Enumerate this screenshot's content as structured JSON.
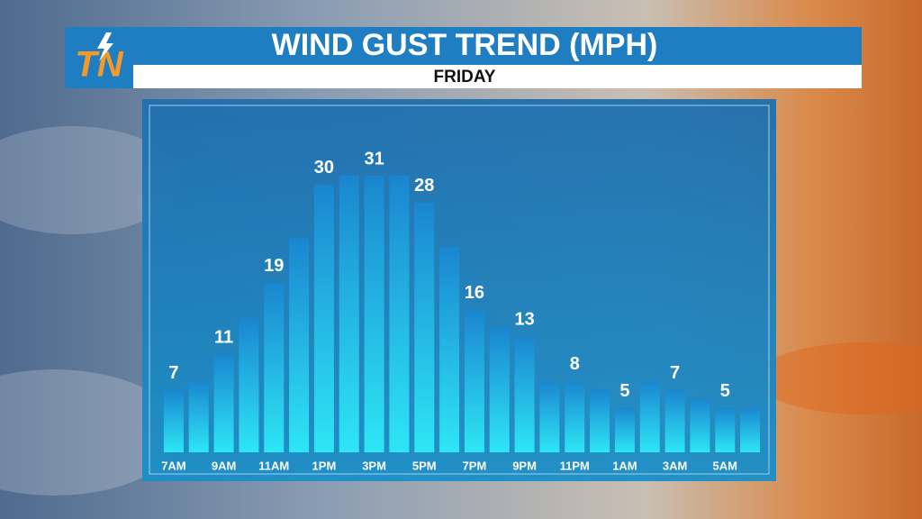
{
  "brand": "TN",
  "chart_data": {
    "type": "bar",
    "title": "WIND GUST TREND (MPH)",
    "subtitle": "FRIDAY",
    "categories": [
      "7AM",
      null,
      "9AM",
      null,
      "11AM",
      null,
      "1PM",
      null,
      "3PM",
      null,
      "5PM",
      null,
      "7PM",
      null,
      "9PM",
      null,
      "11PM",
      null,
      "1AM",
      null,
      "3AM",
      null,
      "5AM",
      null
    ],
    "values": [
      7,
      8,
      11,
      15,
      19,
      24,
      30,
      31,
      31,
      31,
      28,
      23,
      16,
      14,
      13,
      8,
      8,
      7,
      5,
      8,
      7,
      6,
      5,
      5
    ],
    "value_labels": [
      "7",
      null,
      "11",
      null,
      "19",
      null,
      "30",
      null,
      "31",
      null,
      "28",
      null,
      "16",
      null,
      "13",
      null,
      "8",
      null,
      "5",
      null,
      "7",
      null,
      "5",
      null
    ],
    "color": "#2ee6f5"
  }
}
